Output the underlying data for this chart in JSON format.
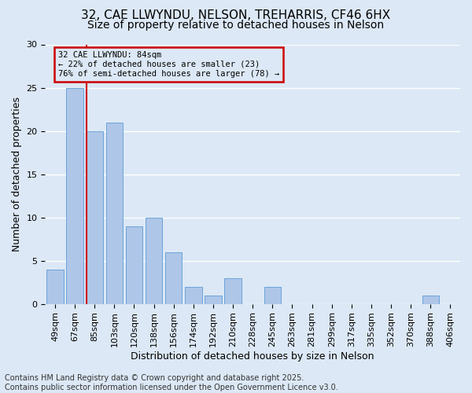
{
  "title_line1": "32, CAE LLWYNDU, NELSON, TREHARRIS, CF46 6HX",
  "title_line2": "Size of property relative to detached houses in Nelson",
  "xlabel": "Distribution of detached houses by size in Nelson",
  "ylabel": "Number of detached properties",
  "categories": [
    "49sqm",
    "67sqm",
    "85sqm",
    "103sqm",
    "120sqm",
    "138sqm",
    "156sqm",
    "174sqm",
    "192sqm",
    "210sqm",
    "228sqm",
    "245sqm",
    "263sqm",
    "281sqm",
    "299sqm",
    "317sqm",
    "335sqm",
    "352sqm",
    "370sqm",
    "388sqm",
    "406sqm"
  ],
  "values": [
    4,
    25,
    20,
    21,
    9,
    10,
    6,
    2,
    1,
    3,
    0,
    2,
    0,
    0,
    0,
    0,
    0,
    0,
    0,
    1,
    0
  ],
  "bar_color": "#aec6e8",
  "bar_edge_color": "#5b9bd5",
  "vline_index": 2,
  "annotation_box_text_line1": "32 CAE LLWYNDU: 84sqm",
  "annotation_box_text_line2": "← 22% of detached houses are smaller (23)",
  "annotation_box_text_line3": "76% of semi-detached houses are larger (78) →",
  "annotation_box_color": "#cc0000",
  "vline_color": "#cc0000",
  "ylim": [
    0,
    30
  ],
  "yticks": [
    0,
    5,
    10,
    15,
    20,
    25,
    30
  ],
  "background_color": "#dce8f5",
  "footer_text": "Contains HM Land Registry data © Crown copyright and database right 2025.\nContains public sector information licensed under the Open Government Licence v3.0.",
  "grid_color": "#ffffff",
  "title_fontsize": 11,
  "subtitle_fontsize": 10,
  "axis_label_fontsize": 9,
  "tick_fontsize": 8,
  "footer_fontsize": 7,
  "ann_fontsize": 7.5
}
